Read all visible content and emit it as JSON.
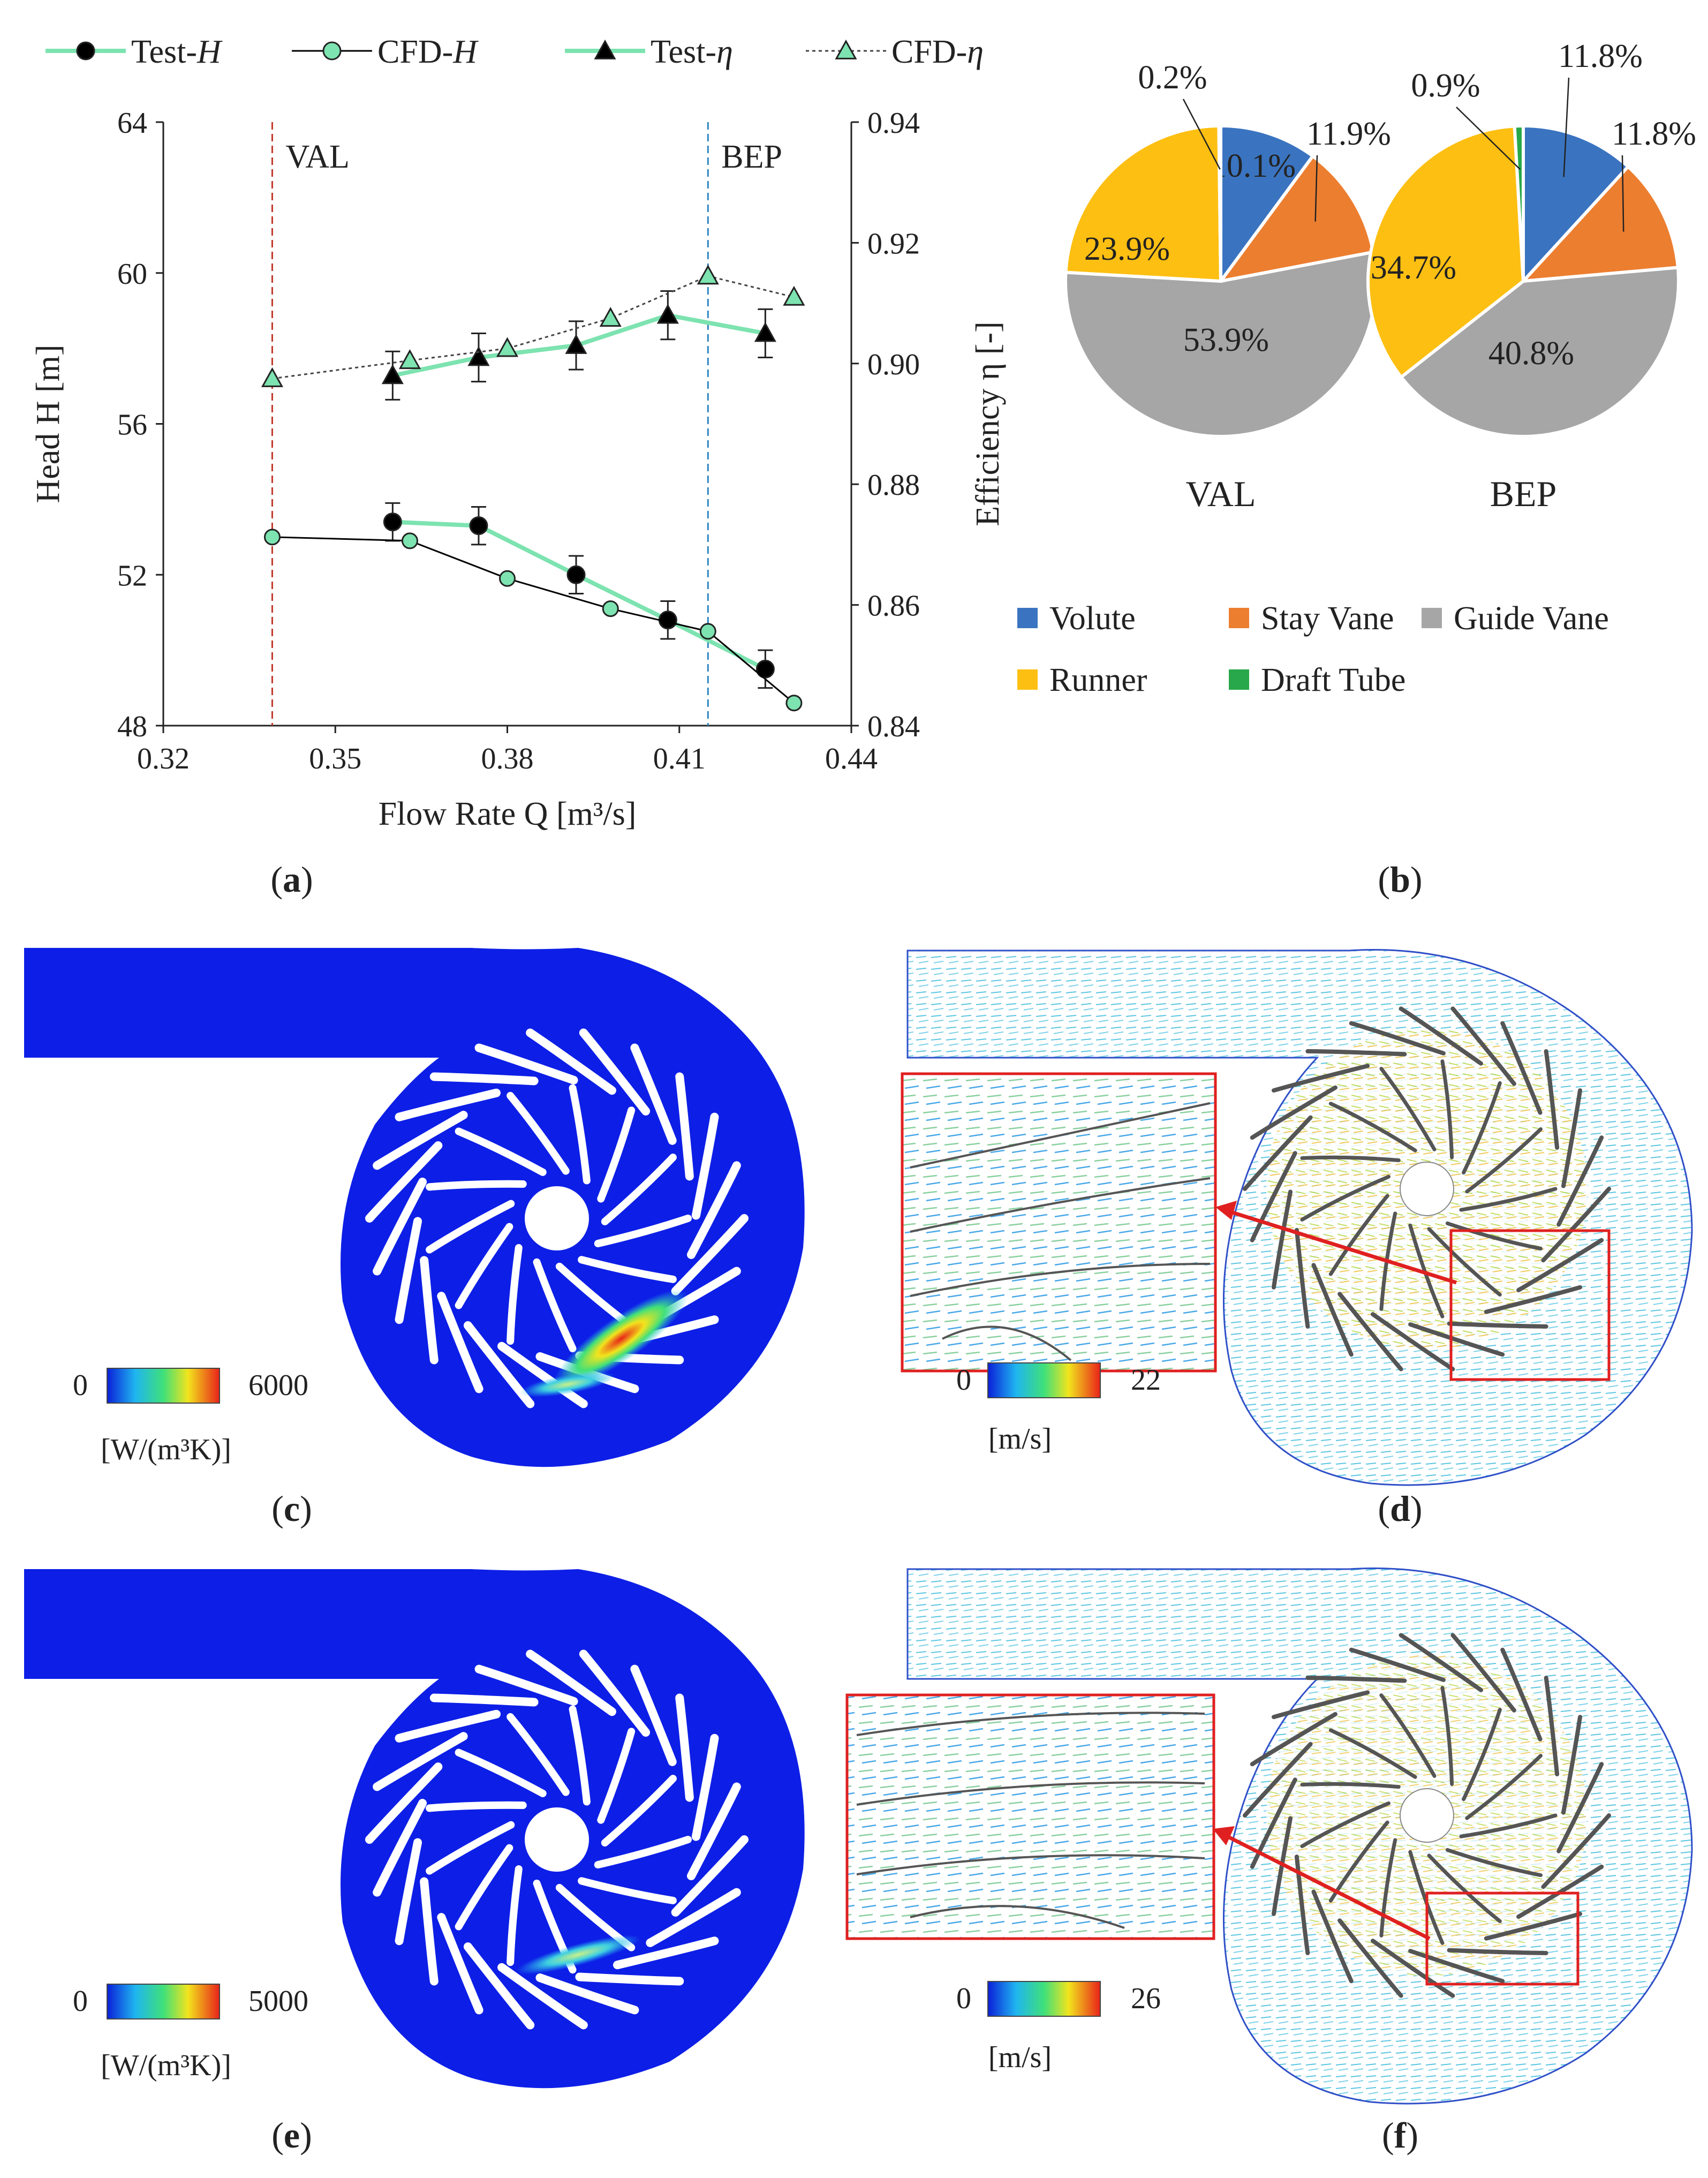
{
  "chart_data": [
    {
      "panel": "a",
      "type": "line",
      "x_label": "Flow Rate Q [m³/s]",
      "y_left_label": "Head H [m]",
      "y_right_label": "Efficiency η [-]",
      "xlim": [
        0.32,
        0.44
      ],
      "ylim_left": [
        48,
        64
      ],
      "ylim_right": [
        0.84,
        0.94
      ],
      "x_ticks": [
        "0.32",
        "0.35",
        "0.38",
        "0.41",
        "0.44"
      ],
      "y_left_ticks": [
        "48",
        "52",
        "56",
        "60",
        "64"
      ],
      "y_right_ticks": [
        "0.84",
        "0.86",
        "0.88",
        "0.90",
        "0.92",
        "0.94"
      ],
      "grid": false,
      "legend_position": "top",
      "annotations": [
        {
          "text": "VAL",
          "x": 0.339,
          "color": "#c0392b"
        },
        {
          "text": "BEP",
          "x": 0.415,
          "color": "#2e86c1"
        }
      ],
      "series": [
        {
          "name": "Test-H",
          "axis": "left",
          "x": [
            0.36,
            0.375,
            0.392,
            0.408,
            0.425
          ],
          "y": [
            53.4,
            53.3,
            52.0,
            50.8,
            49.5
          ],
          "err": [
            0.5,
            0.5,
            0.5,
            0.5,
            0.5
          ],
          "color": "#000000",
          "line_color": "#7de3b0"
        },
        {
          "name": "CFD-H",
          "axis": "left",
          "x": [
            0.339,
            0.363,
            0.38,
            0.398,
            0.415,
            0.43
          ],
          "y": [
            53.0,
            52.9,
            51.9,
            51.1,
            50.5,
            48.6
          ],
          "color": "#7de3b0",
          "line_color": "#000000"
        },
        {
          "name": "Test-η",
          "axis": "right",
          "x": [
            0.36,
            0.375,
            0.392,
            0.408,
            0.425
          ],
          "y": [
            0.898,
            0.901,
            0.903,
            0.908,
            0.905
          ],
          "err": [
            0.004,
            0.004,
            0.004,
            0.004,
            0.004
          ],
          "color": "#000000",
          "line_color": "#7de3b0"
        },
        {
          "name": "CFD-η",
          "axis": "right",
          "x": [
            0.339,
            0.363,
            0.38,
            0.398,
            0.415,
            0.43
          ],
          "y": [
            0.8975,
            0.9005,
            0.9025,
            0.9075,
            0.9145,
            0.911
          ],
          "color": "#7de3b0",
          "line_color": "#444444"
        }
      ]
    },
    {
      "panel": "b",
      "type": "pie",
      "legend": [
        {
          "name": "Volute",
          "color": "#3a74c0"
        },
        {
          "name": "Stay Vane",
          "color": "#ec7e30"
        },
        {
          "name": "Guide Vane",
          "color": "#a6a6a6"
        },
        {
          "name": "Runner",
          "color": "#fdbf12"
        },
        {
          "name": "Draft Tube",
          "color": "#28a84a"
        }
      ],
      "pies": [
        {
          "label": "VAL",
          "values": [
            10.1,
            11.9,
            53.9,
            23.9,
            0.2
          ],
          "labels": [
            "10.1%",
            "11.9%",
            "53.9%",
            "23.9%",
            "0.2%"
          ]
        },
        {
          "label": "BEP",
          "values": [
            11.8,
            11.8,
            40.8,
            34.7,
            0.9
          ],
          "labels": [
            "11.8%",
            "11.8%",
            "40.8%",
            "34.7%",
            "0.9%"
          ]
        }
      ]
    }
  ],
  "panels": {
    "a": "(a)",
    "b": "(b)",
    "c": "(c)",
    "d": "(d)",
    "e": "(e)",
    "f": "(f)"
  },
  "contours": {
    "c": {
      "min": "0",
      "max": "6000",
      "unit": "[W/(m³K)]"
    },
    "d": {
      "min": "0",
      "max": "22",
      "unit": "[m/s]"
    },
    "e": {
      "min": "0",
      "max": "5000",
      "unit": "[W/(m³K)]"
    },
    "f": {
      "min": "0",
      "max": "26",
      "unit": "[m/s]"
    }
  }
}
